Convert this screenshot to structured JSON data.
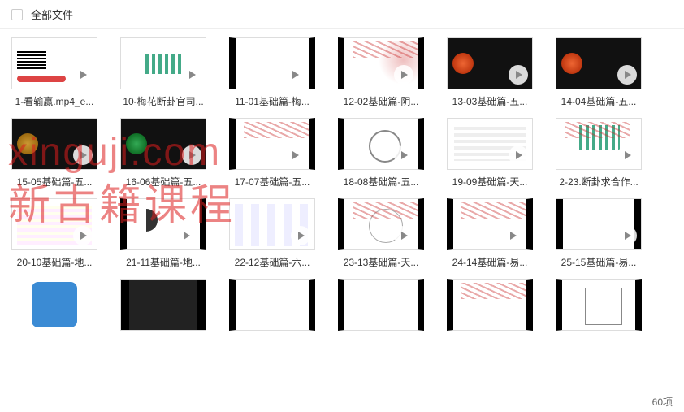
{
  "header": {
    "title": "全部文件"
  },
  "watermark": {
    "url": "xinguji.com",
    "text": "新古籍课程"
  },
  "footer": {
    "count": "60项"
  },
  "items": [
    {
      "label": "1-看输赢.mp4_e..."
    },
    {
      "label": "10-梅花断卦官司..."
    },
    {
      "label": "11-01基础篇-梅..."
    },
    {
      "label": "12-02基础篇-阴..."
    },
    {
      "label": "13-03基础篇-五..."
    },
    {
      "label": "14-04基础篇-五..."
    },
    {
      "label": "15-05基础篇-五..."
    },
    {
      "label": "16-06基础篇-五..."
    },
    {
      "label": "17-07基础篇-五..."
    },
    {
      "label": "18-08基础篇-五..."
    },
    {
      "label": "19-09基础篇-天..."
    },
    {
      "label": "2-23.断卦求合作..."
    },
    {
      "label": "20-10基础篇-地..."
    },
    {
      "label": "21-11基础篇-地..."
    },
    {
      "label": "22-12基础篇-六..."
    },
    {
      "label": "23-13基础篇-天..."
    },
    {
      "label": "24-14基础篇-易..."
    },
    {
      "label": "25-15基础篇-易..."
    },
    {
      "label": ""
    },
    {
      "label": ""
    },
    {
      "label": ""
    },
    {
      "label": ""
    },
    {
      "label": ""
    },
    {
      "label": ""
    }
  ]
}
